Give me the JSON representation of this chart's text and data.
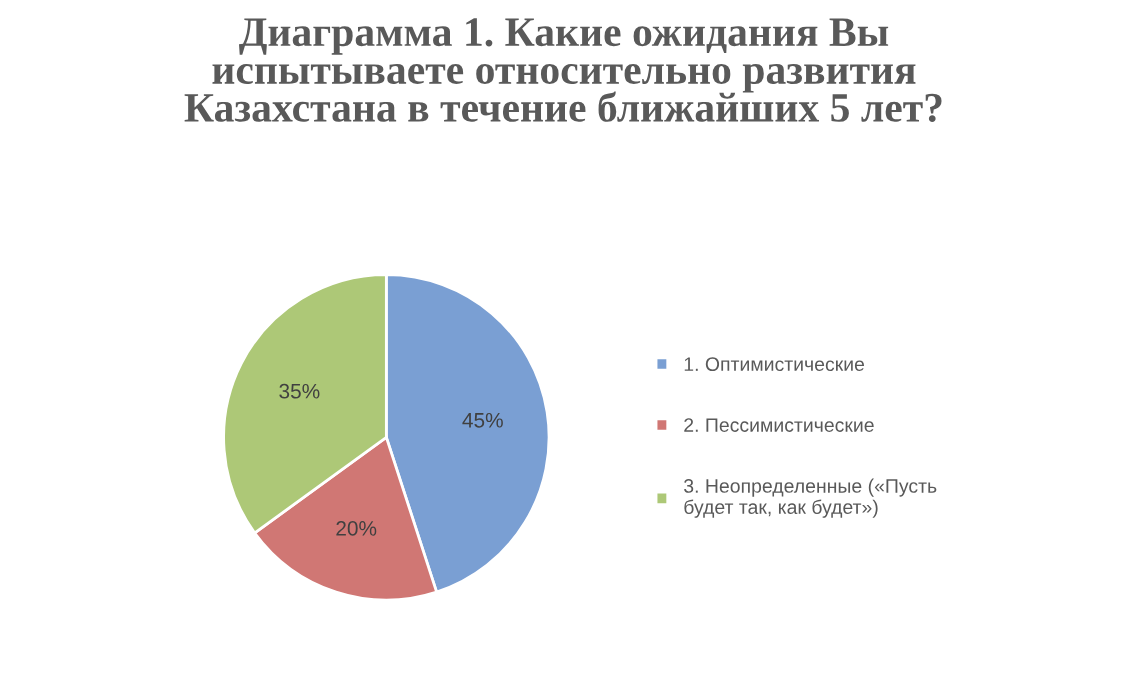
{
  "chart_data": {
    "type": "pie",
    "title": "Диаграмма 1. Какие ожидания Вы\nиспытываете относительно развития\nКазахстана в течение ближайших 5 лет?",
    "categories": [
      "1. Оптимистические",
      "2. Пессимистические",
      "3. Неопределенные («Пусть\nбудет так, как будет»)"
    ],
    "values": [
      45,
      20,
      35
    ],
    "colors": [
      "#7a9fd3",
      "#d07774",
      "#adc877"
    ],
    "value_labels": [
      "45%",
      "20%",
      "35%"
    ],
    "legend": "right"
  }
}
